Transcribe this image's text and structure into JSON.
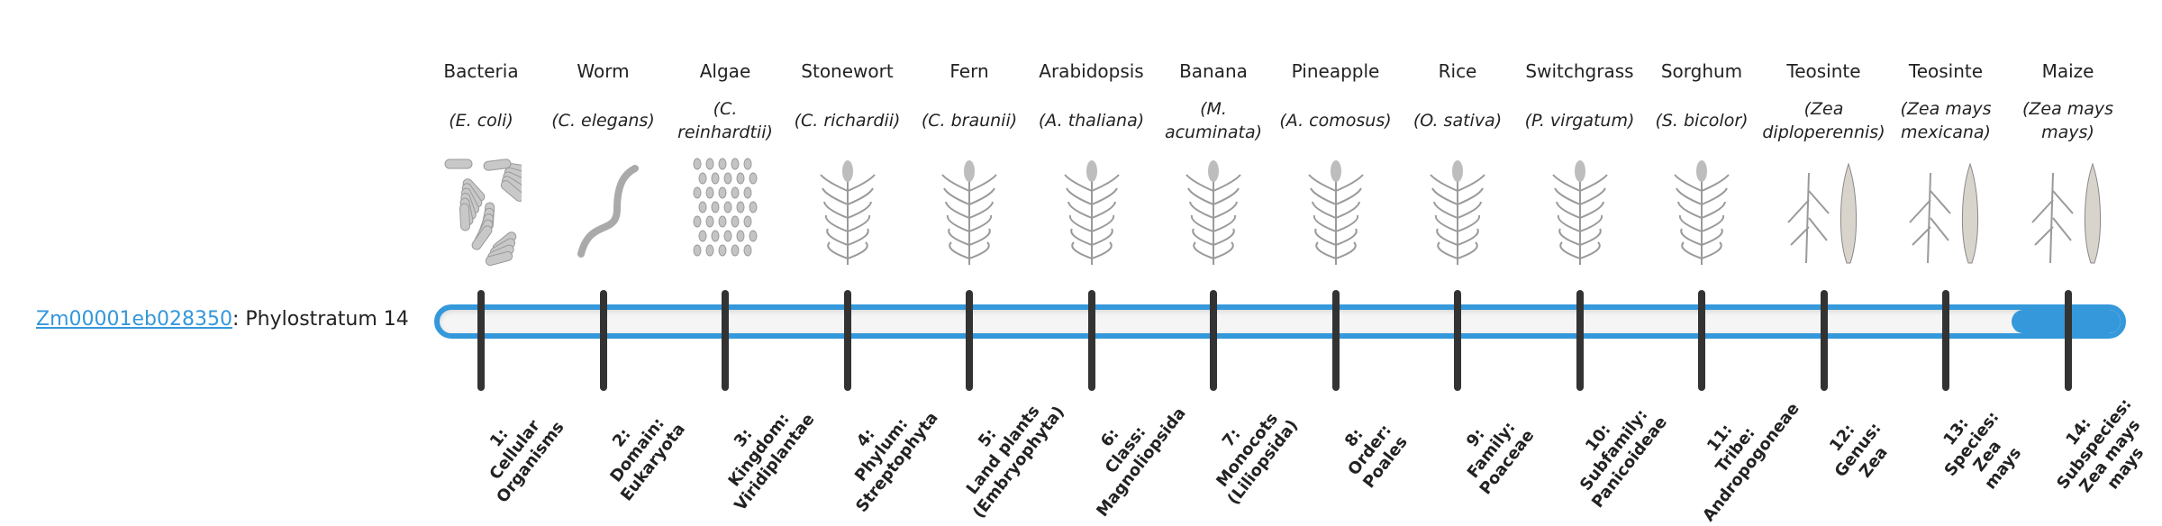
{
  "gene": {
    "id": "Zm00001eb028350",
    "suffix": ": Phylostratum 14"
  },
  "colors": {
    "accent": "#3498db",
    "tick": "#333333",
    "track": "#f5f5f5"
  },
  "progress": {
    "stratum": 14,
    "max": 14,
    "fill_fraction": 0.065
  },
  "strata": [
    {
      "common": "Bacteria",
      "sci": "E. coli",
      "icon": "bacteria-illustration",
      "label": [
        "1:",
        "Cellular",
        "Organisms"
      ]
    },
    {
      "common": "Worm",
      "sci": "C. elegans",
      "icon": "worm-illustration",
      "label": [
        "2:",
        "Domain:",
        "Eukaryota"
      ]
    },
    {
      "common": "Algae",
      "sci": "C. reinhardtii",
      "icon": "algae-illustration",
      "label": [
        "3:",
        "Kingdom:",
        "Viridiplantae"
      ]
    },
    {
      "common": "Stonewort",
      "sci": "C. richardii",
      "icon": "stonewort-illustration",
      "label": [
        "4:",
        "Phylum:",
        "Streptophyta"
      ]
    },
    {
      "common": "Fern",
      "sci": "C. braunii",
      "icon": "fern-illustration",
      "label": [
        "5:",
        "Land plants",
        "(Embryophyta)"
      ]
    },
    {
      "common": "Arabidopsis",
      "sci": "A. thaliana",
      "icon": "arabidopsis-illustration",
      "label": [
        "6:",
        "Class:",
        "Magnoliopsida"
      ]
    },
    {
      "common": "Banana",
      "sci": "M. acuminata",
      "icon": "banana-illustration",
      "label": [
        "7:",
        "Monocots",
        "(Liliopsida)"
      ]
    },
    {
      "common": "Pineapple",
      "sci": "A. comosus",
      "icon": "pineapple-illustration",
      "label": [
        "8:",
        "Order:",
        "Poales"
      ]
    },
    {
      "common": "Rice",
      "sci": "O. sativa",
      "icon": "rice-illustration",
      "label": [
        "9:",
        "Family:",
        "Poaceae"
      ]
    },
    {
      "common": "Switchgrass",
      "sci": "P. virgatum",
      "icon": "switchgrass-illustration",
      "label": [
        "10:",
        "Subfamily:",
        "Panicoideae"
      ]
    },
    {
      "common": "Sorghum",
      "sci": "S. bicolor",
      "icon": "sorghum-illustration",
      "label": [
        "11:",
        "Tribe:",
        "Andropogoneae"
      ]
    },
    {
      "common": "Teosinte",
      "sci": "Zea diploperennis",
      "icon": "teosinte-illustration",
      "label": [
        "12:",
        "Genus:",
        "Zea"
      ]
    },
    {
      "common": "Teosinte",
      "sci": "Zea mays mexicana",
      "icon": "teosinte-illustration",
      "label": [
        "13:",
        "Species:",
        "Zea",
        "mays"
      ]
    },
    {
      "common": "Maize",
      "sci": "Zea mays mays",
      "icon": "maize-illustration",
      "label": [
        "14:",
        "Subspecies:",
        "Zea mays",
        "mays"
      ]
    }
  ]
}
